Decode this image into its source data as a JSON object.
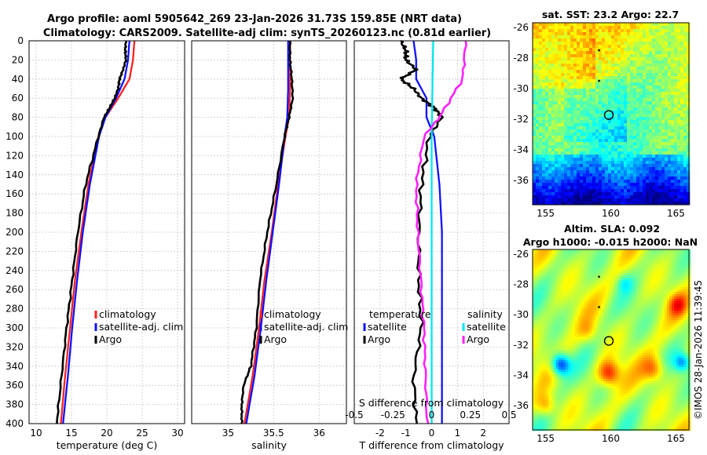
{
  "header": {
    "line1": "Argo profile: aoml 5905642_269 23-Jan-2026 31.73S 159.85E (NRT data)",
    "line2": "Climatology: CARS2009. Satellite-adj clim: synTS_20260123.nc (0.81d earlier)"
  },
  "credit": "©IMOS 28-Jan-2026 11:39:45",
  "colors": {
    "climatology": "#ff2020",
    "satellite": "#1010ff",
    "argo": "#000000",
    "salinity_sat": "#00e8f0",
    "salinity_argo": "#ff20ff"
  },
  "chart_data": [
    {
      "type": "line",
      "id": "temperature",
      "xlabel": "temperature (deg C)",
      "ylabel": "",
      "xlim": [
        9,
        31
      ],
      "ylim": [
        0,
        400
      ],
      "xticks": [
        10,
        15,
        20,
        25,
        30
      ],
      "yticks": [
        0,
        20,
        40,
        60,
        80,
        100,
        120,
        140,
        160,
        180,
        200,
        220,
        240,
        260,
        280,
        300,
        320,
        340,
        360,
        380,
        400
      ],
      "legend": [
        "climatology",
        "satellite-adj. clim",
        "Argo"
      ],
      "series": [
        {
          "name": "climatology",
          "depth": [
            0,
            20,
            40,
            60,
            80,
            100,
            150,
            200,
            250,
            300,
            350,
            400
          ],
          "values": [
            23.9,
            23.7,
            23.2,
            21.6,
            19.8,
            18.8,
            17.4,
            16.4,
            15.5,
            14.8,
            14.1,
            13.5
          ]
        },
        {
          "name": "satellite-adj. clim",
          "depth": [
            0,
            20,
            40,
            60,
            80,
            100,
            150,
            200,
            250,
            300,
            350,
            400
          ],
          "values": [
            23.2,
            23.0,
            22.5,
            21.3,
            19.8,
            18.9,
            17.6,
            16.6,
            15.8,
            15.1,
            14.5,
            13.8
          ]
        },
        {
          "name": "Argo",
          "depth": [
            0,
            10,
            20,
            30,
            40,
            50,
            60,
            70,
            80,
            100,
            150,
            200,
            250,
            300,
            350,
            400
          ],
          "values": [
            22.7,
            22.6,
            22.7,
            22.3,
            21.8,
            21.6,
            21.1,
            20.4,
            19.6,
            18.8,
            17.0,
            15.9,
            15.1,
            14.3,
            13.6,
            12.9
          ]
        }
      ]
    },
    {
      "type": "line",
      "id": "salinity",
      "xlabel": "salinity",
      "xlim": [
        34.6,
        36.3
      ],
      "ylim": [
        0,
        400
      ],
      "xticks": [
        35,
        35.5,
        36
      ],
      "legend": [
        "climatology",
        "satellite-adj. clim",
        "Argo"
      ],
      "series": [
        {
          "name": "climatology",
          "depth": [
            0,
            50,
            80,
            100,
            150,
            200,
            250,
            300,
            350,
            400
          ],
          "values": [
            35.68,
            35.68,
            35.67,
            35.63,
            35.55,
            35.48,
            35.4,
            35.34,
            35.27,
            35.18
          ]
        },
        {
          "name": "satellite-adj. clim",
          "depth": [
            0,
            50,
            80,
            100,
            150,
            200,
            250,
            300,
            350,
            400
          ],
          "values": [
            35.66,
            35.66,
            35.65,
            35.62,
            35.56,
            35.49,
            35.42,
            35.36,
            35.29,
            35.2
          ]
        },
        {
          "name": "Argo",
          "depth": [
            0,
            20,
            40,
            60,
            80,
            100,
            150,
            200,
            250,
            300,
            340,
            360,
            380,
            400
          ],
          "values": [
            35.68,
            35.68,
            35.7,
            35.71,
            35.67,
            35.62,
            35.53,
            35.43,
            35.35,
            35.31,
            35.25,
            35.17,
            35.15,
            35.15
          ]
        }
      ]
    },
    {
      "type": "line",
      "id": "difference",
      "xlabel": "T difference from climatology",
      "xlabel_top": "S difference from climatology",
      "xlim": [
        -3,
        3
      ],
      "ylim": [
        0,
        400
      ],
      "xticks": [
        -2,
        -1,
        0,
        1,
        2
      ],
      "xticks_s": [
        "-0.5",
        "-0.25",
        "0",
        "0.25",
        "0.5"
      ],
      "legend_t": {
        "title": "temperature",
        "items": [
          "satellite",
          "Argo"
        ]
      },
      "legend_s": {
        "title": "salinity",
        "items": [
          "satellite",
          "Argo"
        ]
      },
      "series": [
        {
          "name": "temperature satellite",
          "depth": [
            0,
            20,
            40,
            60,
            80,
            100,
            150,
            200,
            250,
            300,
            350,
            400
          ],
          "values": [
            -0.7,
            -0.6,
            -0.6,
            -0.2,
            -0.2,
            0.1,
            0.3,
            0.4,
            0.4,
            0.4,
            0.4,
            0.4
          ]
        },
        {
          "name": "temperature Argo",
          "depth": [
            0,
            10,
            20,
            30,
            40,
            50,
            60,
            70,
            80,
            100,
            150,
            200,
            250,
            300,
            350,
            400
          ],
          "values": [
            -1.2,
            -1.0,
            -1.0,
            -0.6,
            -1.2,
            -0.7,
            -0.4,
            0.1,
            0.4,
            -0.1,
            -0.4,
            -0.5,
            -0.5,
            -0.4,
            -0.7,
            -0.6
          ]
        },
        {
          "name": "salinity satellite",
          "depth": [
            0,
            100,
            200,
            300,
            400
          ],
          "values": [
            0.01,
            0.0,
            0.0,
            0.0,
            0.0
          ]
        },
        {
          "name": "salinity Argo",
          "depth": [
            0,
            40,
            80,
            100,
            150,
            200,
            250,
            300,
            350,
            400
          ],
          "values": [
            0.22,
            0.2,
            0.05,
            -0.05,
            -0.1,
            -0.09,
            -0.07,
            -0.05,
            -0.04,
            -0.03
          ]
        }
      ]
    },
    {
      "type": "heatmap",
      "id": "sst_map",
      "title": "sat. SST: 23.2 Argo: 22.7",
      "xlim": [
        154,
        166
      ],
      "ylim": [
        -37.6,
        -25.7
      ],
      "xticks": [
        155,
        160,
        165
      ],
      "yticks": [
        -26,
        -28,
        -30,
        -32,
        -34,
        -36
      ],
      "float_position": [
        159.85,
        -31.73
      ]
    },
    {
      "type": "heatmap",
      "id": "sla_map",
      "title_line1": "Altim. SLA: 0.092",
      "title_line2": "Argo h1000: -0.015 h2000: NaN",
      "xlim": [
        154,
        166
      ],
      "ylim": [
        -37.6,
        -25.7
      ],
      "xticks": [
        155,
        160,
        165
      ],
      "yticks": [
        -26,
        -28,
        -30,
        -32,
        -34,
        -36
      ],
      "float_position": [
        159.85,
        -31.73
      ]
    }
  ]
}
